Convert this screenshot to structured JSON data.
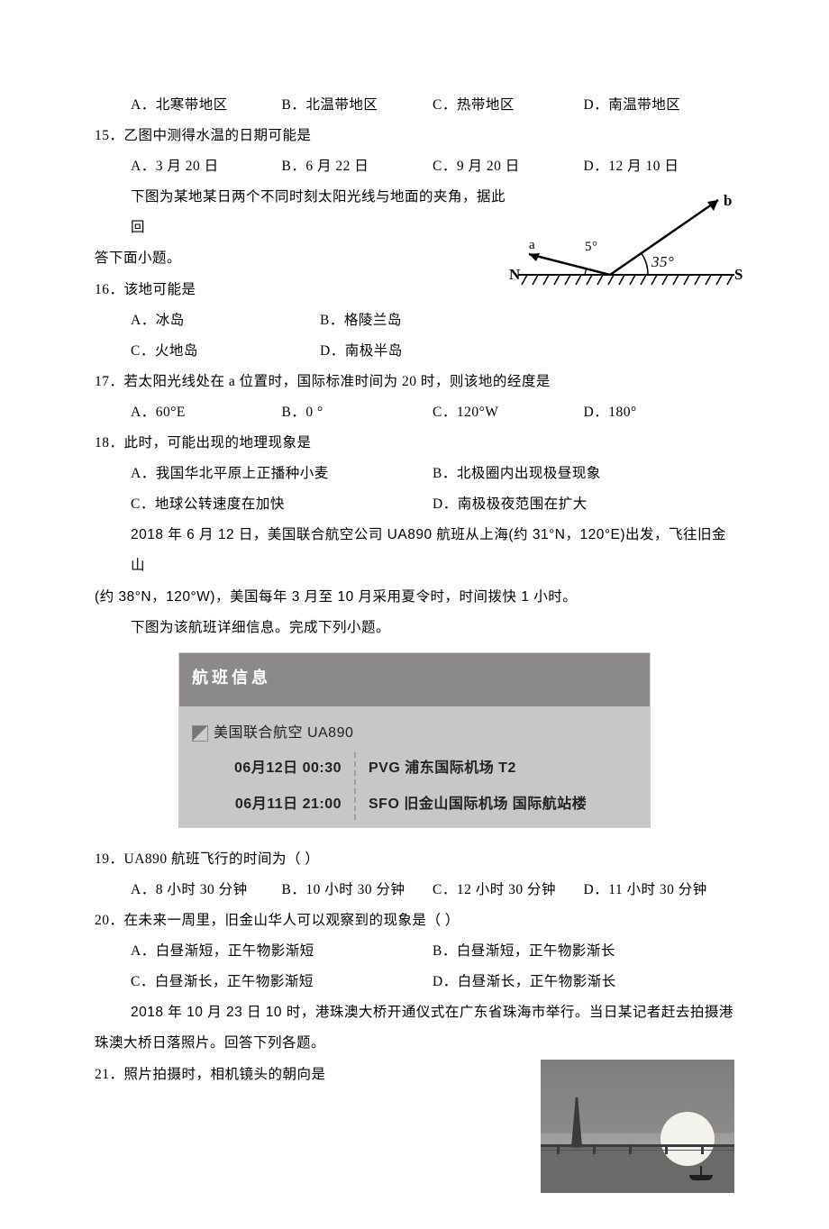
{
  "q14": {
    "opts": {
      "a": "A．北寒带地区",
      "b": "B．北温带地区",
      "c": "C．热带地区",
      "d": "D．南温带地区"
    }
  },
  "q15": {
    "stem": "15．乙图中测得水温的日期可能是",
    "opts": {
      "a": "A．3 月 20 日",
      "b": "B．6 月 22 日",
      "c": "C．9 月 20 日",
      "d": "D．12 月 10 日"
    }
  },
  "passage16": {
    "l1": "下图为某地某日两个不同时刻太阳光线与地面的夹角，据此回",
    "l2": "答下面小题。"
  },
  "angle_fig": {
    "left_angle_label": "5°",
    "right_angle_label": "35°",
    "n_label": "N",
    "s_label": "S",
    "ray_b_label": "b",
    "ray_a_label": "a",
    "stroke": "#000000",
    "ground_hatch": "#000000"
  },
  "q16": {
    "stem": "16．该地可能是",
    "opts": {
      "a": "A．冰岛",
      "b": "B．格陵兰岛",
      "c": "C．火地岛",
      "d": "D．南极半岛"
    }
  },
  "q17": {
    "stem": "17．若太阳光线处在 a 位置时，国际标准时间为 20 时，则该地的经度是",
    "opts": {
      "a": "A．60°E",
      "b": "B．0 °",
      "c": "C．120°W",
      "d": "D．180°"
    }
  },
  "q18": {
    "stem": "18．此时，可能出现的地理现象是",
    "opts": {
      "a": "A．我国华北平原上正播种小麦",
      "b": "B．北极圈内出现极昼现象",
      "c": "C．地球公转速度在加快",
      "d": "D．南极极夜范围在扩大"
    }
  },
  "passage19": {
    "l1": "2018 年 6 月 12 日，美国联合航空公司 UA890 航班从上海(约 31°N，120°E)出发，飞往旧金山",
    "l2": "(约 38°N，120°W)，美国每年 3 月至 10 月采用夏令时，时间拨快 1 小时。",
    "l3": "下图为该航班详细信息。完成下列小题。"
  },
  "flight": {
    "title": "航班信息",
    "airline": "美国联合航空 UA890",
    "rows": [
      {
        "time": "06月12日 00:30",
        "place": "PVG 浦东国际机场  T2"
      },
      {
        "time": "06月11日 21:00",
        "place": "SFO 旧金山国际机场  国际航站楼"
      }
    ]
  },
  "q19": {
    "stem": "19．UA890 航班飞行的时间为（  ）",
    "opts": {
      "a": "A．8 小时 30 分钟",
      "b": "B．10 小时 30 分钟",
      "c": "C．12 小时 30 分钟",
      "d": "D．11 小时 30 分钟"
    }
  },
  "q20": {
    "stem": "20．在未来一周里，旧金山华人可以观察到的现象是（  ）",
    "opts": {
      "a": "A．白昼渐短，正午物影渐短",
      "b": "B．白昼渐短，正午物影渐长",
      "c": "C．白昼渐长，正午物影渐短",
      "d": "D．白昼渐长，正午物影渐长"
    }
  },
  "passage21": {
    "l1": "2018 年 10 月 23 日 10 时，港珠澳大桥开通仪式在广东省珠海市举行。当日某记者赶去拍摄港",
    "l2": "珠澳大桥日落照片。回答下列各题。"
  },
  "q21": {
    "stem": "21．照片拍摄时，相机镜头的朝向是"
  },
  "sunset_fig": {
    "pier_x": [
      18,
      58,
      98,
      138,
      178
    ]
  }
}
